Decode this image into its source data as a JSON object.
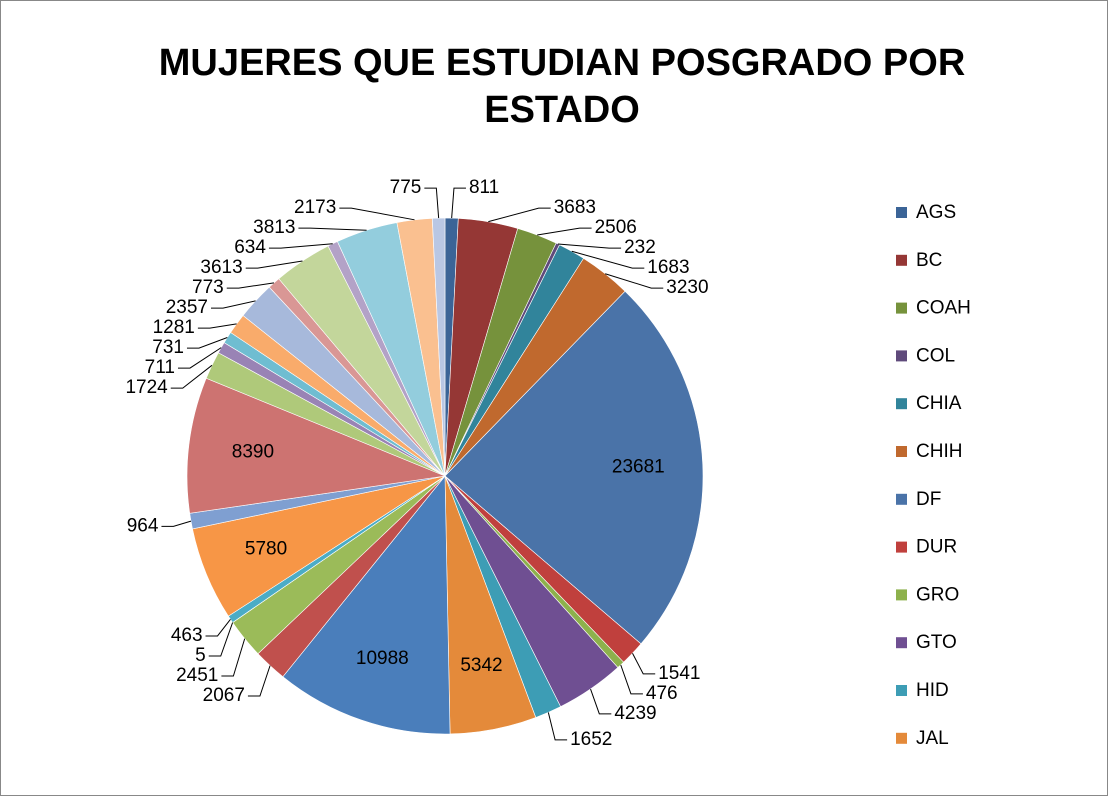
{
  "chart_data": {
    "type": "pie",
    "title": "MUJERES QUE ESTUDIAN POSGRADO POR ESTADO",
    "categories": [
      "AGS",
      "BC",
      "COAH",
      "COL",
      "CHIA",
      "CHIH",
      "DF",
      "DUR",
      "GRO",
      "GTO",
      "HID",
      "JAL",
      null,
      null,
      null,
      null,
      null,
      null,
      null,
      null,
      null,
      null,
      null,
      null,
      null,
      null,
      null,
      null,
      null,
      null,
      null
    ],
    "values": [
      811,
      3683,
      2506,
      232,
      1683,
      3230,
      23681,
      1541,
      476,
      4239,
      1652,
      5342,
      10988,
      2067,
      2451,
      5,
      463,
      5780,
      964,
      8390,
      1724,
      711,
      731,
      1281,
      2357,
      773,
      3613,
      634,
      3813,
      2173,
      775
    ],
    "colors": [
      "#3b6497",
      "#953735",
      "#76923c",
      "#5f4a7b",
      "#31849b",
      "#c0692e",
      "#4a73a8",
      "#c0403d",
      "#8db14c",
      "#6f4f92",
      "#3d9db5",
      "#e48a3a",
      "#4a7ebb",
      "#c0504d",
      "#9bbb59",
      "#8064a2",
      "#4bacc6",
      "#f79646",
      "#7f9fd1",
      "#cd7371",
      "#afc97a",
      "#9983b5",
      "#6fbdd1",
      "#f9ab6b",
      "#a7b9db",
      "#d99795",
      "#c3d69b",
      "#b3a2c7",
      "#93cddd",
      "#fac090",
      "#b9c7e4"
    ],
    "legend": "right"
  }
}
